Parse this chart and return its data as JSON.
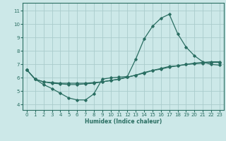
{
  "xlabel": "Humidex (Indice chaleur)",
  "bg_color": "#cce8e8",
  "grid_color": "#aacccc",
  "line_color": "#2a6e62",
  "x_ticks": [
    0,
    1,
    2,
    3,
    4,
    5,
    6,
    7,
    8,
    9,
    10,
    11,
    12,
    13,
    14,
    15,
    16,
    17,
    18,
    19,
    20,
    21,
    22,
    23
  ],
  "y_ticks": [
    4,
    5,
    6,
    7,
    8,
    9,
    10,
    11
  ],
  "xlim": [
    -0.5,
    23.5
  ],
  "ylim": [
    3.6,
    11.6
  ],
  "curve1_x": [
    0,
    1,
    2,
    3,
    4,
    5,
    6,
    7,
    8,
    9,
    10,
    11,
    12,
    13,
    14,
    15,
    16,
    17,
    18,
    19,
    20,
    21,
    22,
    23
  ],
  "curve1_y": [
    6.6,
    5.9,
    5.5,
    5.2,
    4.85,
    4.5,
    4.35,
    4.35,
    4.8,
    5.9,
    6.0,
    6.05,
    6.1,
    7.4,
    8.9,
    9.85,
    10.45,
    10.75,
    9.3,
    8.3,
    7.65,
    7.2,
    7.0,
    6.95
  ],
  "curve2_x": [
    0,
    1,
    2,
    3,
    4,
    5,
    6,
    7,
    8,
    9,
    10,
    11,
    12,
    13,
    14,
    15,
    16,
    17,
    18,
    19,
    20,
    21,
    22,
    23
  ],
  "curve2_y": [
    6.6,
    5.9,
    5.7,
    5.6,
    5.55,
    5.5,
    5.5,
    5.55,
    5.6,
    5.7,
    5.8,
    5.9,
    6.05,
    6.2,
    6.4,
    6.55,
    6.7,
    6.85,
    6.9,
    7.0,
    7.1,
    7.15,
    7.2,
    7.2
  ],
  "curve3_x": [
    0,
    1,
    2,
    3,
    4,
    5,
    6,
    7,
    8,
    9,
    10,
    11,
    12,
    13,
    14,
    15,
    16,
    17,
    18,
    19,
    20,
    21,
    22,
    23
  ],
  "curve3_y": [
    6.6,
    5.9,
    5.7,
    5.65,
    5.6,
    5.6,
    5.6,
    5.6,
    5.65,
    5.7,
    5.8,
    5.9,
    6.05,
    6.2,
    6.35,
    6.55,
    6.65,
    6.8,
    6.9,
    7.0,
    7.05,
    7.1,
    7.15,
    7.15
  ]
}
